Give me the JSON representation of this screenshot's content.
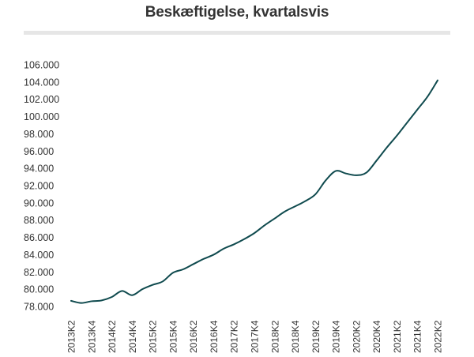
{
  "chart_data": {
    "type": "line",
    "title": "Beskæftigelse, kvartalsvis",
    "xlabel": "",
    "ylabel": "",
    "ylim": [
      78000,
      106000
    ],
    "y_ticks": [
      "78.000",
      "80.000",
      "82.000",
      "84.000",
      "86.000",
      "88.000",
      "90.000",
      "92.000",
      "94.000",
      "96.000",
      "98.000",
      "100.000",
      "102.000",
      "104.000",
      "106.000"
    ],
    "x_tick_labels": [
      "2013K2",
      "2013K4",
      "2014K2",
      "2014K4",
      "2015K2",
      "2015K4",
      "2016K2",
      "2016K4",
      "2017K2",
      "2017K4",
      "2018K2",
      "2018K4",
      "2019K2",
      "2019K4",
      "2020K2",
      "2020K4",
      "2021K2",
      "2021K4",
      "2022K2"
    ],
    "grid": false,
    "legend": "none",
    "line_color": "#0f4a4e",
    "x": [
      "2013K2",
      "2013K3",
      "2013K4",
      "2014K1",
      "2014K2",
      "2014K3",
      "2014K4",
      "2015K1",
      "2015K2",
      "2015K3",
      "2015K4",
      "2016K1",
      "2016K2",
      "2016K3",
      "2016K4",
      "2017K1",
      "2017K2",
      "2017K3",
      "2017K4",
      "2018K1",
      "2018K2",
      "2018K3",
      "2018K4",
      "2019K1",
      "2019K2",
      "2019K3",
      "2019K4",
      "2020K1",
      "2020K2",
      "2020K3",
      "2020K4",
      "2021K1",
      "2021K2",
      "2021K3",
      "2021K4",
      "2022K1",
      "2022K2"
    ],
    "series": [
      {
        "values": [
          78650,
          78400,
          78600,
          78700,
          79100,
          79800,
          79300,
          80000,
          80500,
          80900,
          81900,
          82300,
          82900,
          83500,
          84000,
          84700,
          85200,
          85800,
          86500,
          87400,
          88200,
          89000,
          89600,
          90200,
          91000,
          92600,
          93700,
          93400,
          93200,
          93500,
          94900,
          96400,
          97800,
          99300,
          100800,
          102300,
          104200
        ]
      }
    ]
  }
}
